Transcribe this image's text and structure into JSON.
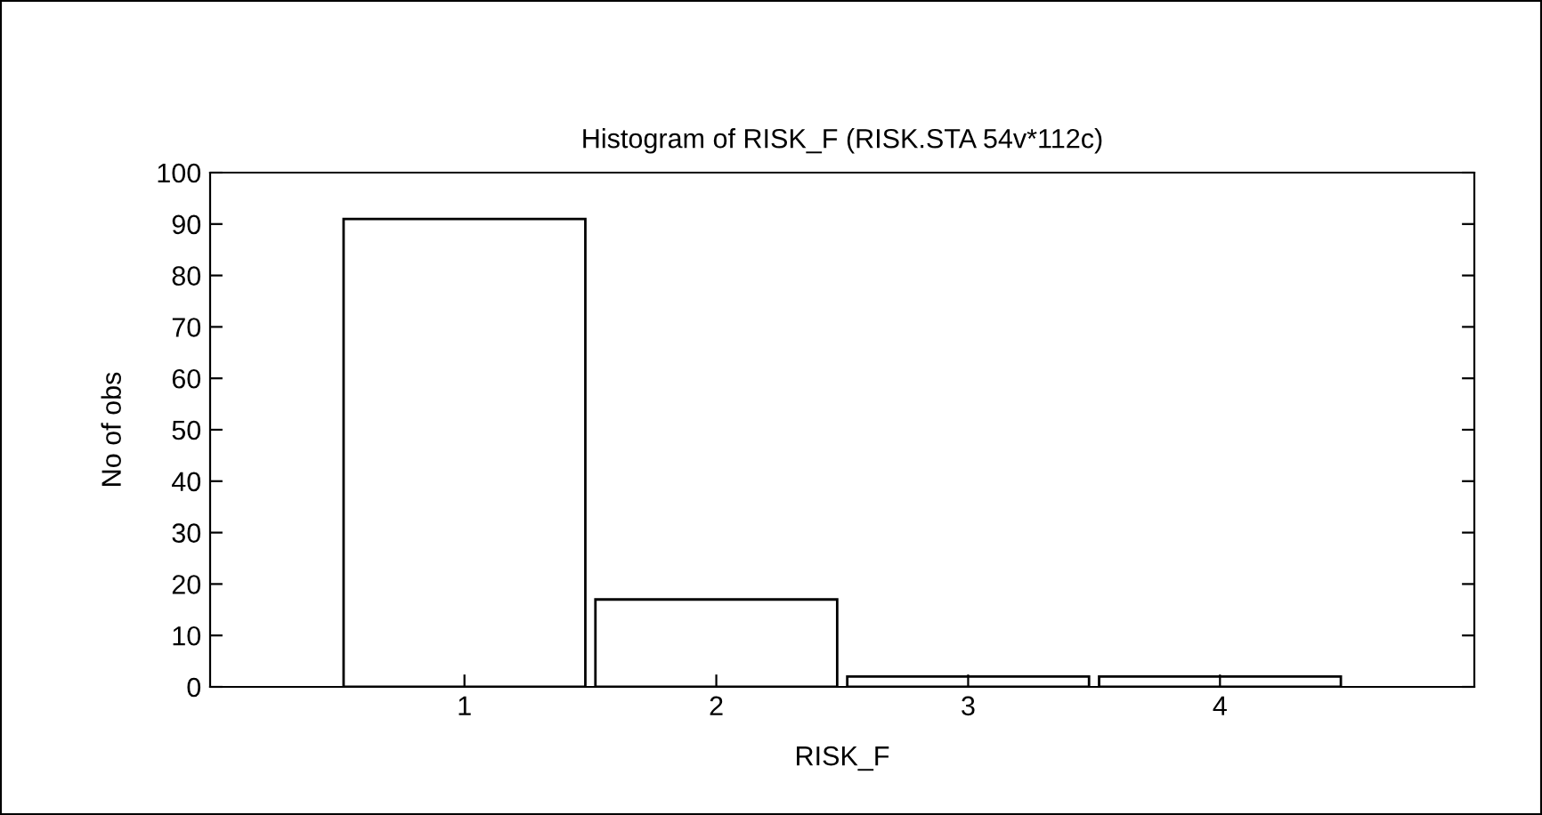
{
  "chart_data": {
    "type": "bar",
    "title": "Histogram of RISK_F (RISK.STA 54v*112c)",
    "xlabel": "RISK_F",
    "ylabel": "No of obs",
    "categories": [
      "1",
      "2",
      "3",
      "4"
    ],
    "values": [
      91,
      17,
      2,
      2
    ],
    "color": "#ffffff",
    "ylim": [
      0,
      100
    ],
    "yticks": [
      0,
      10,
      20,
      30,
      40,
      50,
      60,
      70,
      80,
      90,
      100
    ],
    "grid": false,
    "legend": false
  }
}
